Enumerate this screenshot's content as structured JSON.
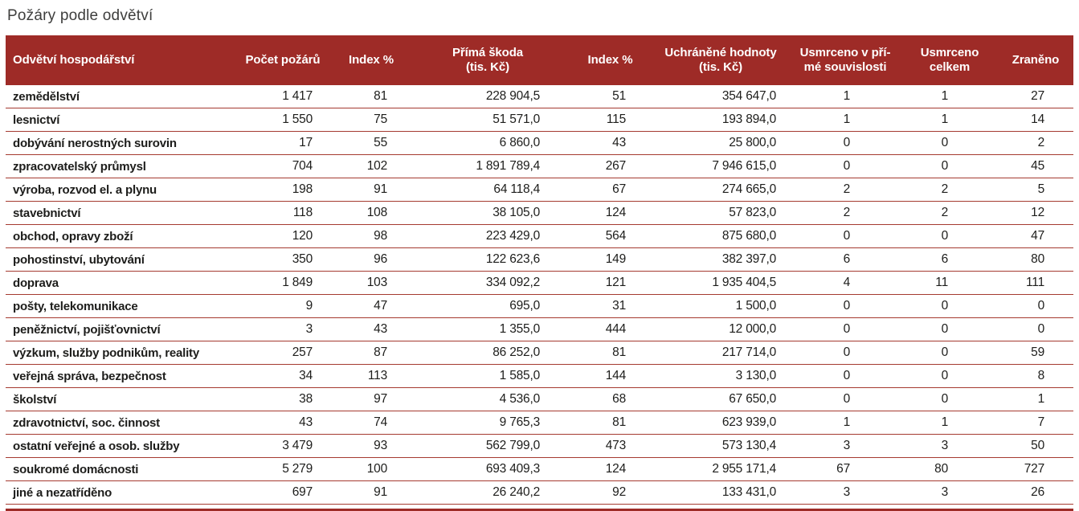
{
  "title": "Požáry podle odvětví",
  "colors": {
    "header_bg": "#9e2b27",
    "separator_line": "#a53a30",
    "title_text": "#3e3e3d",
    "body_text": "#1d1d1b",
    "header_text": "#ffffff"
  },
  "table": {
    "columns": [
      {
        "key": "sector",
        "label": "Odvětví hospodářství",
        "align": "left"
      },
      {
        "key": "fires",
        "label": "Počet požárů",
        "align": "right"
      },
      {
        "key": "index1",
        "label": "Index %",
        "align": "right"
      },
      {
        "key": "damage",
        "label": "Přímá škoda\n(tis. Kč)",
        "align": "right"
      },
      {
        "key": "index2",
        "label": "Index %",
        "align": "right"
      },
      {
        "key": "saved",
        "label": "Uchráněné hodnoty\n(tis. Kč)",
        "align": "right"
      },
      {
        "key": "killed_direct",
        "label": "Usmrceno v pří-\nmé souvislosti",
        "align": "right"
      },
      {
        "key": "killed_total",
        "label": "Usmrceno\ncelkem",
        "align": "right"
      },
      {
        "key": "injured",
        "label": "Zraněno",
        "align": "right"
      }
    ],
    "rows": [
      [
        "zemědělství",
        "1 417",
        "81",
        "228 904,5",
        "51",
        "354 647,0",
        "1",
        "1",
        "27"
      ],
      [
        "lesnictví",
        "1 550",
        "75",
        "51 571,0",
        "115",
        "193 894,0",
        "1",
        "1",
        "14"
      ],
      [
        "dobývání nerostných surovin",
        "17",
        "55",
        "6 860,0",
        "43",
        "25 800,0",
        "0",
        "0",
        "2"
      ],
      [
        "zpracovatelský průmysl",
        "704",
        "102",
        "1 891 789,4",
        "267",
        "7 946 615,0",
        "0",
        "0",
        "45"
      ],
      [
        "výroba, rozvod el. a plynu",
        "198",
        "91",
        "64 118,4",
        "67",
        "274 665,0",
        "2",
        "2",
        "5"
      ],
      [
        "stavebnictví",
        "118",
        "108",
        "38 105,0",
        "124",
        "57 823,0",
        "2",
        "2",
        "12"
      ],
      [
        "obchod, opravy zboží",
        "120",
        "98",
        "223 429,0",
        "564",
        "875 680,0",
        "0",
        "0",
        "47"
      ],
      [
        "pohostinství, ubytování",
        "350",
        "96",
        "122 623,6",
        "149",
        "382 397,0",
        "6",
        "6",
        "80"
      ],
      [
        "doprava",
        "1 849",
        "103",
        "334 092,2",
        "121",
        "1 935 404,5",
        "4",
        "11",
        "111"
      ],
      [
        "pošty, telekomunikace",
        "9",
        "47",
        "695,0",
        "31",
        "1 500,0",
        "0",
        "0",
        "0"
      ],
      [
        "peněžnictví, pojišťovnictví",
        "3",
        "43",
        "1 355,0",
        "444",
        "12 000,0",
        "0",
        "0",
        "0"
      ],
      [
        "výzkum, služby podnikům, reality",
        "257",
        "87",
        "86 252,0",
        "81",
        "217 714,0",
        "0",
        "0",
        "59"
      ],
      [
        "veřejná správa, bezpečnost",
        "34",
        "113",
        "1 585,0",
        "144",
        "3 130,0",
        "0",
        "0",
        "8"
      ],
      [
        "školství",
        "38",
        "97",
        "4 536,0",
        "68",
        "67 650,0",
        "0",
        "0",
        "1"
      ],
      [
        "zdravotnictví, soc. činnost",
        "43",
        "74",
        "9 765,3",
        "81",
        "623 939,0",
        "1",
        "1",
        "7"
      ],
      [
        "ostatní veřejné a osob. služby",
        "3 479",
        "93",
        "562 799,0",
        "473",
        "573 130,4",
        "3",
        "3",
        "50"
      ],
      [
        "soukromé domácnosti",
        "5 279",
        "100",
        "693 409,3",
        "124",
        "2 955 171,4",
        "67",
        "80",
        "727"
      ],
      [
        "jiné a nezatříděno",
        "697",
        "91",
        "26 240,2",
        "92",
        "133 431,0",
        "3",
        "3",
        "26"
      ]
    ]
  }
}
